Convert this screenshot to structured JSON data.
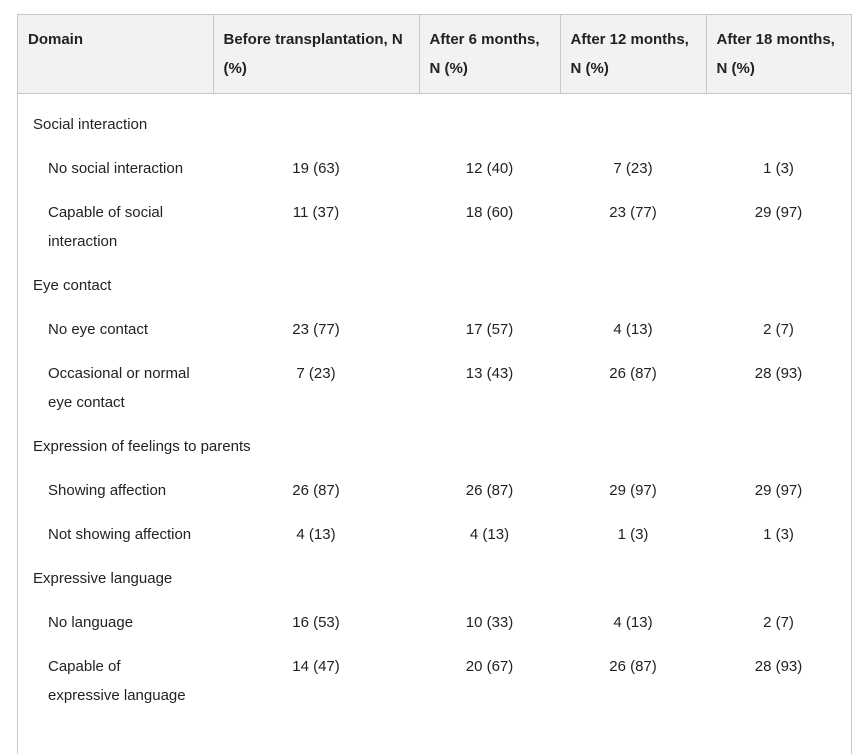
{
  "table": {
    "headers": [
      "Domain",
      "Before transplantation, N (%)",
      "After 6 months, N (%)",
      "After 12 months, N (%)",
      "After 18 months, N (%)"
    ],
    "rows": [
      [
        "Social interaction"
      ],
      [
        "No social interaction",
        "19 (63)",
        "12 (40)",
        "7 (23)",
        "1 (3)"
      ],
      [
        "Capable of social interaction",
        "11 (37)",
        "18 (60)",
        "23 (77)",
        "29 (97)"
      ],
      [
        "Eye contact"
      ],
      [
        "No eye contact",
        "23 (77)",
        "17 (57)",
        "4 (13)",
        "2 (7)"
      ],
      [
        "Occasional or normal eye contact",
        "7 (23)",
        "13 (43)",
        "26 (87)",
        "28 (93)"
      ],
      [
        "Expression of feelings to parents"
      ],
      [
        "Showing affection",
        "26 (87)",
        "26 (87)",
        "29 (97)",
        "29 (97)"
      ],
      [
        "Not showing affection",
        "4 (13)",
        "4 (13)",
        "1 (3)",
        "1 (3)"
      ],
      [
        "Expressive language"
      ],
      [
        "No language",
        "16 (53)",
        "10 (33)",
        "4 (13)",
        "2 (7)"
      ],
      [
        "Capable of expressive language",
        "14 (47)",
        "20 (67)",
        "26 (87)",
        "28 (93)"
      ]
    ]
  }
}
